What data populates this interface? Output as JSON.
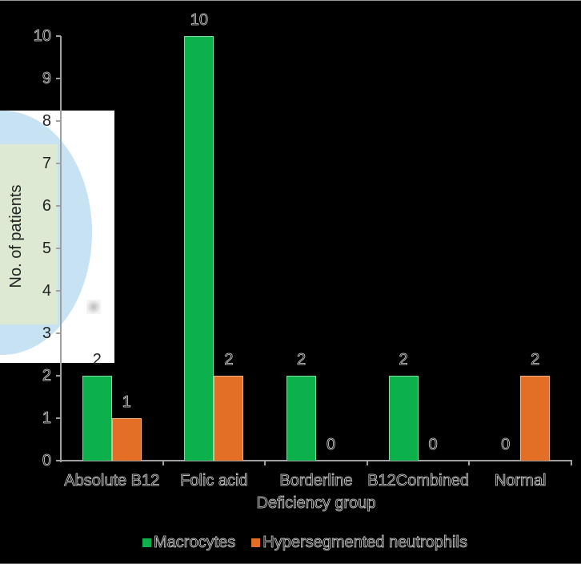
{
  "chart_data": {
    "type": "bar",
    "title": "",
    "xlabel": "Deficiency group",
    "ylabel": "No. of patients",
    "ylim": [
      0,
      10
    ],
    "yticks": [
      0,
      1,
      2,
      3,
      4,
      5,
      6,
      7,
      8,
      9,
      10
    ],
    "grid": false,
    "legend_position": "bottom",
    "categories": [
      "Absolute B12",
      "Folic acid",
      "Borderline",
      "B12Combined",
      "Normal"
    ],
    "series": [
      {
        "name": "Macrocytes",
        "color": "#0db14b",
        "values": [
          2,
          10,
          2,
          2,
          0
        ]
      },
      {
        "name": "Hypersegmented neutrophils",
        "color": "#e36f26",
        "values": [
          1,
          2,
          0,
          0,
          2
        ]
      }
    ],
    "data_labels": true
  }
}
